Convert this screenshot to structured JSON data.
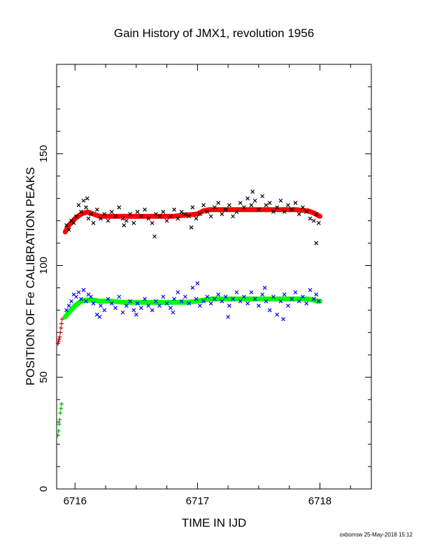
{
  "footer": "oxborrow 25-May-2018 15:12",
  "chart_data": {
    "type": "scatter",
    "title": "Gain History of JMX1, revolution 1956",
    "xlabel": "TIME IN IJD",
    "ylabel": "POSITION OF Fe CALIBRATION PEAKS",
    "xlim": [
      6715.85,
      6718.42
    ],
    "ylim": [
      0,
      190
    ],
    "xticks": [
      6716,
      6717,
      6718
    ],
    "yticks": [
      0,
      50,
      100,
      150
    ],
    "grid": false,
    "colors": {
      "upper_fit": "#ff0000",
      "lower_fit": "#00ff00",
      "upper_points": "#000000",
      "lower_points": "#0000ff",
      "early_upper": "#cc0000",
      "early_lower": "#00aa00"
    },
    "series": [
      {
        "marker": "cross",
        "role": "upper_points",
        "x": [
          6715.93,
          6715.95,
          6715.97,
          6715.99,
          6716.01,
          6716.03,
          6716.05,
          6716.07,
          6716.09,
          6716.11,
          6716.13,
          6716.15,
          6716.18,
          6716.21,
          6716.24,
          6716.27,
          6716.3,
          6716.33,
          6716.36,
          6716.39,
          6716.42,
          6716.45,
          6716.48,
          6716.51,
          6716.54,
          6716.57,
          6716.6,
          6716.63,
          6716.66,
          6716.69,
          6716.72,
          6716.75,
          6716.78,
          6716.81,
          6716.84,
          6716.87,
          6716.9,
          6716.93,
          6716.96,
          6716.99,
          6717.02,
          6717.05,
          6717.08,
          6717.11,
          6717.14,
          6717.17,
          6717.2,
          6717.23,
          6717.26,
          6717.29,
          6717.32,
          6717.35,
          6717.38,
          6717.41,
          6717.44,
          6717.47,
          6717.5,
          6717.53,
          6717.56,
          6717.59,
          6717.62,
          6717.65,
          6717.68,
          6717.71,
          6717.74,
          6717.77,
          6717.8,
          6717.83,
          6717.86,
          6717.89,
          6717.92,
          6717.95,
          6717.97,
          6717.99,
          6716.1,
          6716.4,
          6716.65,
          6716.95,
          6717.45,
          6717.97
        ],
        "y": [
          118,
          116,
          120,
          119,
          122,
          127,
          124,
          129,
          126,
          121,
          123,
          119,
          125,
          121,
          123,
          120,
          124,
          122,
          126,
          121,
          120,
          123,
          119,
          124,
          122,
          125,
          121,
          119,
          123,
          122,
          124,
          120,
          122,
          125,
          121,
          124,
          123,
          122,
          126,
          121,
          123,
          127,
          124,
          122,
          126,
          128,
          123,
          125,
          127,
          122,
          124,
          128,
          126,
          130,
          127,
          129,
          125,
          131,
          127,
          128,
          124,
          126,
          129,
          124,
          127,
          125,
          128,
          123,
          126,
          124,
          121,
          120,
          123,
          119,
          130,
          118,
          113,
          117,
          133,
          110
        ]
      },
      {
        "marker": "cross",
        "role": "lower_points",
        "x": [
          6715.93,
          6715.95,
          6715.97,
          6715.99,
          6716.01,
          6716.03,
          6716.05,
          6716.07,
          6716.09,
          6716.11,
          6716.13,
          6716.15,
          6716.18,
          6716.21,
          6716.24,
          6716.27,
          6716.3,
          6716.33,
          6716.36,
          6716.39,
          6716.42,
          6716.45,
          6716.48,
          6716.51,
          6716.54,
          6716.57,
          6716.6,
          6716.63,
          6716.66,
          6716.69,
          6716.72,
          6716.75,
          6716.78,
          6716.81,
          6716.84,
          6716.87,
          6716.9,
          6716.93,
          6716.96,
          6716.99,
          6717.02,
          6717.05,
          6717.08,
          6717.11,
          6717.14,
          6717.17,
          6717.2,
          6717.23,
          6717.26,
          6717.29,
          6717.32,
          6717.35,
          6717.38,
          6717.41,
          6717.44,
          6717.47,
          6717.5,
          6717.53,
          6717.56,
          6717.59,
          6717.62,
          6717.65,
          6717.68,
          6717.71,
          6717.74,
          6717.77,
          6717.8,
          6717.83,
          6717.86,
          6717.89,
          6717.92,
          6717.95,
          6717.97,
          6717.99,
          6716.2,
          6716.5,
          6716.8,
          6717.0,
          6717.25,
          6717.55,
          6717.7
        ],
        "y": [
          80,
          82,
          84,
          87,
          86,
          88,
          85,
          89,
          84,
          87,
          86,
          83,
          78,
          82,
          80,
          85,
          83,
          81,
          86,
          79,
          82,
          84,
          80,
          83,
          81,
          85,
          82,
          80,
          84,
          82,
          86,
          83,
          81,
          85,
          88,
          84,
          86,
          83,
          90,
          85,
          82,
          84,
          86,
          83,
          85,
          87,
          84,
          86,
          82,
          85,
          88,
          84,
          86,
          83,
          88,
          85,
          82,
          87,
          84,
          80,
          86,
          78,
          84,
          87,
          82,
          85,
          88,
          84,
          86,
          83,
          89,
          85,
          87,
          84,
          77,
          78,
          79,
          92,
          77,
          90,
          76
        ]
      },
      {
        "marker": "plus",
        "role": "early_upper",
        "x": [
          6715.86,
          6715.865,
          6715.87,
          6715.875,
          6715.88,
          6715.885,
          6715.89,
          6715.895
        ],
        "y": [
          65,
          66,
          67,
          68,
          70,
          72,
          74,
          76
        ]
      },
      {
        "marker": "plus",
        "role": "early_lower",
        "x": [
          6715.86,
          6715.865,
          6715.87,
          6715.875,
          6715.88,
          6715.885,
          6715.89
        ],
        "y": [
          24,
          26,
          29,
          31,
          34,
          36,
          38
        ]
      }
    ],
    "fits": [
      {
        "role": "upper_fit",
        "x": [
          6715.92,
          6715.95,
          6716.0,
          6716.05,
          6716.1,
          6716.15,
          6716.2,
          6716.3,
          6716.4,
          6716.5,
          6716.6,
          6716.7,
          6716.8,
          6716.9,
          6717.0,
          6717.05,
          6717.1,
          6717.2,
          6717.3,
          6717.4,
          6717.5,
          6717.6,
          6717.7,
          6717.8,
          6717.9,
          6717.95,
          6717.98,
          6718.0
        ],
        "y": [
          115,
          118,
          121,
          123,
          124,
          123,
          122,
          122,
          122,
          122,
          122,
          122,
          122,
          122.5,
          123,
          124.5,
          125,
          125,
          125,
          125,
          125,
          125,
          125,
          125,
          124.5,
          123.5,
          122.5,
          122
        ]
      },
      {
        "role": "lower_fit",
        "x": [
          6715.92,
          6715.95,
          6716.0,
          6716.05,
          6716.1,
          6716.15,
          6716.2,
          6716.3,
          6716.4,
          6716.5,
          6716.6,
          6716.7,
          6716.8,
          6716.9,
          6717.0,
          6717.05,
          6717.1,
          6717.2,
          6717.3,
          6717.4,
          6717.5,
          6717.6,
          6717.7,
          6717.8,
          6717.9,
          6717.95,
          6717.98,
          6718.0
        ],
        "y": [
          77,
          79,
          82,
          84,
          84.5,
          84.5,
          84,
          84,
          83.5,
          83.5,
          83.5,
          83.5,
          83.5,
          83.5,
          84,
          84.5,
          85,
          85,
          85,
          85,
          85,
          85,
          85,
          85,
          85,
          84.5,
          84,
          84
        ]
      }
    ]
  }
}
